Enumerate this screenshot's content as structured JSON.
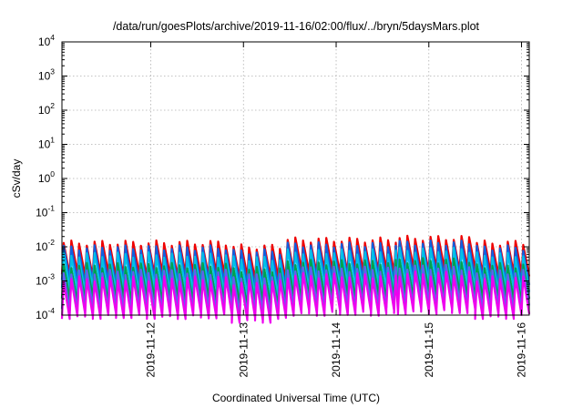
{
  "chart_data": {
    "type": "line",
    "title": "/data/run/goesPlots/archive/2019-11-16/02:00/flux/../bryn/5daysMars.plot",
    "xlabel": "Coordinated Universal Time (UTC)",
    "ylabel": "cSv/day",
    "yscale": "log",
    "ylim": [
      0.0001,
      10000
    ],
    "y_ticks": [
      {
        "base": "10",
        "exp": "-4"
      },
      {
        "base": "10",
        "exp": "-3"
      },
      {
        "base": "10",
        "exp": "-2"
      },
      {
        "base": "10",
        "exp": "-1"
      },
      {
        "base": "10",
        "exp": "0"
      },
      {
        "base": "10",
        "exp": "1"
      },
      {
        "base": "10",
        "exp": "2"
      },
      {
        "base": "10",
        "exp": "3"
      },
      {
        "base": "10",
        "exp": "4"
      }
    ],
    "xlim": [
      "2019-11-11T01:00",
      "2019-11-16T02:00"
    ],
    "x_ticks": [
      "2019-11-12",
      "2019-11-13",
      "2019-11-14",
      "2019-11-15",
      "2019-11-16"
    ],
    "grid": true,
    "legend": "none",
    "pattern": {
      "period_hours": 2,
      "rows": [
        {
          "from": "2019-11-11T01:00",
          "to": "2019-11-12T21:00",
          "peak": 0.013
        },
        {
          "from": "2019-11-12T21:00",
          "to": "2019-11-13T11:00",
          "peak": 0.01
        },
        {
          "from": "2019-11-13T11:00",
          "to": "2019-11-14T16:00",
          "peak": 0.016
        },
        {
          "from": "2019-11-14T16:00",
          "to": "2019-11-15T12:00",
          "peak": 0.018
        },
        {
          "from": "2019-11-15T12:00",
          "to": "2019-11-16T02:00",
          "peak": 0.013
        }
      ]
    },
    "series": [
      {
        "color": "#ee0000",
        "peak_ratio": 1.0,
        "trough_ratio": 0.12
      },
      {
        "color": "#1060e0",
        "peak_ratio": 0.72,
        "trough_ratio": 0.1
      },
      {
        "color": "#00c0e8",
        "peak_ratio": 0.45,
        "trough_ratio": 0.09
      },
      {
        "color": "#00a050",
        "peak_ratio": 0.22,
        "trough_ratio": 0.1
      },
      {
        "color": "#6060f0",
        "peak_ratio": 0.14,
        "trough_ratio": 0.09
      },
      {
        "color": "#ee00ee",
        "peak_ratio": 0.09,
        "trough_ratio": 0.08
      }
    ]
  }
}
